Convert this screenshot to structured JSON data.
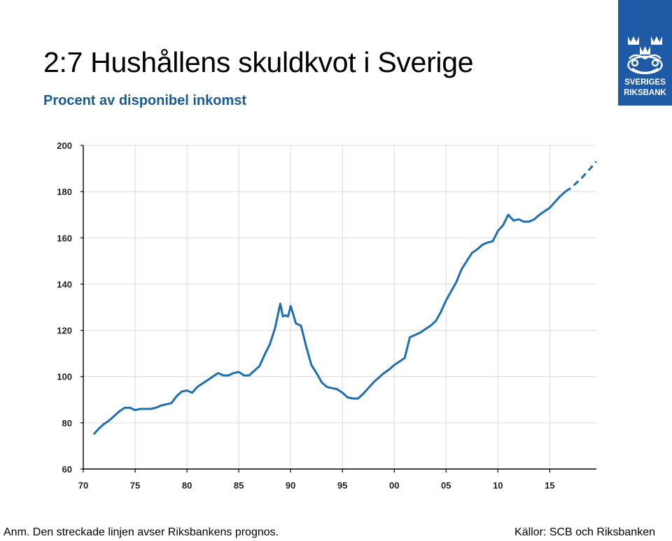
{
  "header": {
    "title": "2:7 Hushållens skuldkvot i Sverige",
    "subtitle": "Procent av disponibel inkomst"
  },
  "logo": {
    "line1": "SVERIGES",
    "line2": "RIKSBANK",
    "icon": "riksbank-emblem-icon"
  },
  "footer": {
    "note": "Anm. Den streckade linjen avser Riksbankens prognos.",
    "source": "Källor: SCB och Riksbanken"
  },
  "colors": {
    "line": "#1f6fb0",
    "logo_bg": "#1f5aa6",
    "subtitle": "#1a5a96",
    "grid": "#d9d9d9"
  },
  "chart_data": {
    "type": "line",
    "title": "2:7 Hushållens skuldkvot i Sverige",
    "ylabel": "Procent av disponibel inkomst",
    "xlim": [
      1970,
      2019.5
    ],
    "ylim": [
      60,
      200
    ],
    "x_ticks": [
      {
        "value": 1970,
        "label": "70"
      },
      {
        "value": 1975,
        "label": "75"
      },
      {
        "value": 1980,
        "label": "80"
      },
      {
        "value": 1985,
        "label": "85"
      },
      {
        "value": 1990,
        "label": "90"
      },
      {
        "value": 1995,
        "label": "95"
      },
      {
        "value": 2000,
        "label": "00"
      },
      {
        "value": 2005,
        "label": "05"
      },
      {
        "value": 2010,
        "label": "10"
      },
      {
        "value": 2015,
        "label": "15"
      }
    ],
    "y_ticks": [
      60,
      80,
      100,
      120,
      140,
      160,
      180,
      200
    ],
    "grid": "vertical and horizontal",
    "series": [
      {
        "style": "solid",
        "x": [
          1971,
          1971.5,
          1972,
          1972.5,
          1973,
          1973.5,
          1974,
          1974.5,
          1975,
          1975.5,
          1976,
          1976.5,
          1977,
          1977.5,
          1978,
          1978.5,
          1979,
          1979.5,
          1980,
          1980.5,
          1981,
          1981.5,
          1982,
          1982.5,
          1983,
          1983.5,
          1984,
          1984.5,
          1985,
          1985.5,
          1986,
          1986.5,
          1987,
          1987.5,
          1988,
          1988.5,
          1989,
          1989.25,
          1989.5,
          1989.75,
          1990,
          1990.25,
          1990.5,
          1991,
          1991.5,
          1992,
          1992.5,
          1993,
          1993.5,
          1994,
          1994.5,
          1995,
          1995.5,
          1996,
          1996.5,
          1997,
          1997.5,
          1998,
          1998.5,
          1999,
          1999.5,
          2000,
          2000.5,
          2001,
          2001.5,
          2002,
          2002.5,
          2003,
          2003.5,
          2004,
          2004.5,
          2005,
          2005.5,
          2006,
          2006.5,
          2007,
          2007.5,
          2008,
          2008.5,
          2009,
          2009.5,
          2010,
          2010.5,
          2011,
          2011.5,
          2012,
          2012.5,
          2013,
          2013.5,
          2014,
          2014.5,
          2015,
          2015.5,
          2016,
          2016.5
        ],
        "y": [
          75,
          77.5,
          79.5,
          81,
          83,
          85,
          86.5,
          86.5,
          85.5,
          86,
          86,
          86,
          86.5,
          87.5,
          88,
          88.5,
          91.5,
          93.5,
          94,
          93,
          95.5,
          97,
          98.5,
          100,
          101.5,
          100.5,
          100.5,
          101.5,
          102,
          100.5,
          100.5,
          102.5,
          104.5,
          109.5,
          114,
          121,
          131.5,
          126,
          126.5,
          126,
          130.5,
          127,
          123,
          122,
          113,
          105,
          101.5,
          97.5,
          95.5,
          95,
          94.5,
          93,
          91,
          90.5,
          90.5,
          92.5,
          95,
          97.5,
          99.5,
          101.5,
          103,
          105,
          106.5,
          108,
          117,
          118,
          119,
          120.5,
          122,
          124,
          128,
          133,
          137,
          141,
          146.5,
          150,
          153.5,
          155,
          157,
          158,
          158.5,
          163,
          165.5,
          170,
          167.5,
          168,
          167,
          167,
          168,
          170,
          171.5,
          173,
          175.5,
          178,
          180
        ]
      },
      {
        "style": "dashed",
        "x": [
          2016.5,
          2017,
          2017.5,
          2018,
          2018.5,
          2019,
          2019.5
        ],
        "y": [
          180,
          181.5,
          183.5,
          185.5,
          188,
          190.5,
          193
        ]
      }
    ]
  }
}
